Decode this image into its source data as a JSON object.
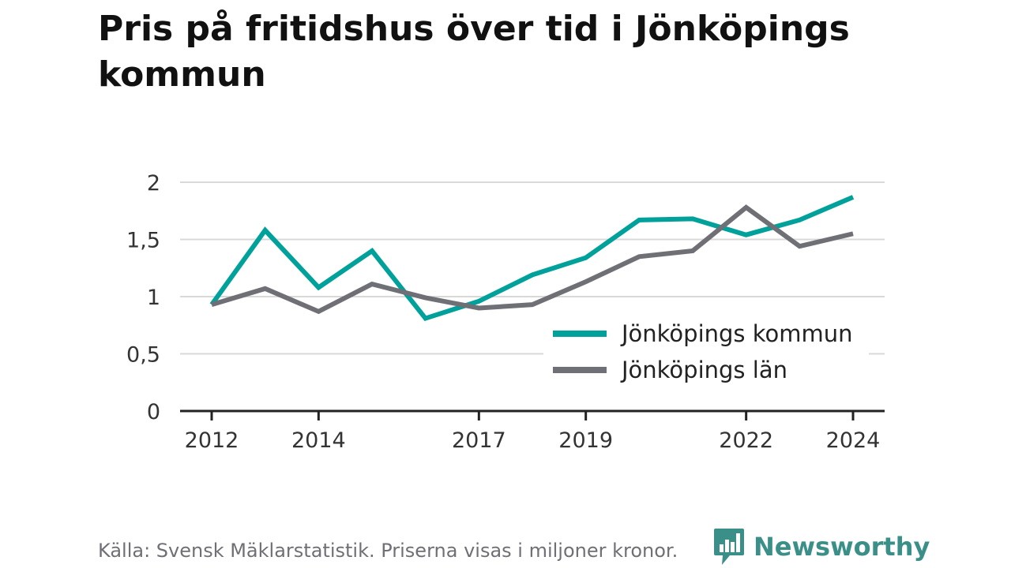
{
  "chart_data": {
    "type": "line",
    "title": "Pris på fritidshus över tid i Jönköpings kommun",
    "xlabel": "",
    "ylabel": "",
    "x": [
      2012,
      2013,
      2014,
      2015,
      2016,
      2017,
      2018,
      2019,
      2020,
      2021,
      2022,
      2023,
      2024
    ],
    "x_tick_labels": [
      "2012",
      "2014",
      "2017",
      "2019",
      "2022",
      "2024"
    ],
    "x_tick_values": [
      2012,
      2014,
      2017,
      2019,
      2022,
      2024
    ],
    "y_tick_labels": [
      "0",
      "0,5",
      "1",
      "1,5",
      "2"
    ],
    "y_tick_values": [
      0,
      0.5,
      1,
      1.5,
      2
    ],
    "ylim": [
      0,
      2
    ],
    "grid": true,
    "legend_position": "bottom-right",
    "series": [
      {
        "name": "Jönköpings kommun",
        "color": "#00a19a",
        "values": [
          0.93,
          1.58,
          1.08,
          1.4,
          0.81,
          0.96,
          1.19,
          1.34,
          1.67,
          1.68,
          1.54,
          1.67,
          1.87
        ]
      },
      {
        "name": "Jönköpings län",
        "color": "#6f6f76",
        "values": [
          0.93,
          1.07,
          0.87,
          1.11,
          0.99,
          0.9,
          0.93,
          1.13,
          1.35,
          1.4,
          1.78,
          1.44,
          1.55
        ]
      }
    ]
  },
  "footer": {
    "source": "Källa: Svensk Mäklarstatistik. Priserna visas i miljoner kronor.",
    "brand": "Newsworthy",
    "brand_icon": "bar-chart-speech-bubble-icon",
    "brand_color": "#3a8f88"
  }
}
